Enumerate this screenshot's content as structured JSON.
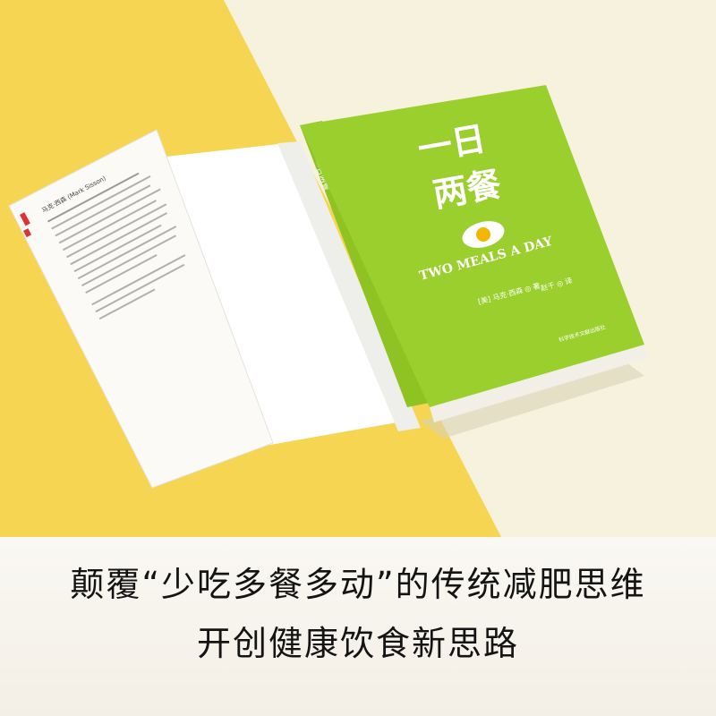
{
  "book": {
    "title_line1": "一日",
    "title_line2": "两餐",
    "subtitle_en": "TWO MEALS A DAY",
    "author_line": "[美] 马克·西森 ◎ 著",
    "translator_line": "赵千 ◎ 译",
    "publisher": "科学技术文献出版社",
    "spine_title": "一日两餐",
    "flap_heading": "马克·西森 (Mark Sisson)"
  },
  "caption": {
    "line1": "颠覆“少吃多餐多动”的传统减肥思维",
    "line2": "开创健康饮食新思路"
  },
  "colors": {
    "cover_green": "#9bcf2d",
    "bg_yellow": "#f6d552",
    "bg_cream": "#f7f2de",
    "caption_bg": "#f6f3ec",
    "egg_yolk": "#f2b705"
  }
}
